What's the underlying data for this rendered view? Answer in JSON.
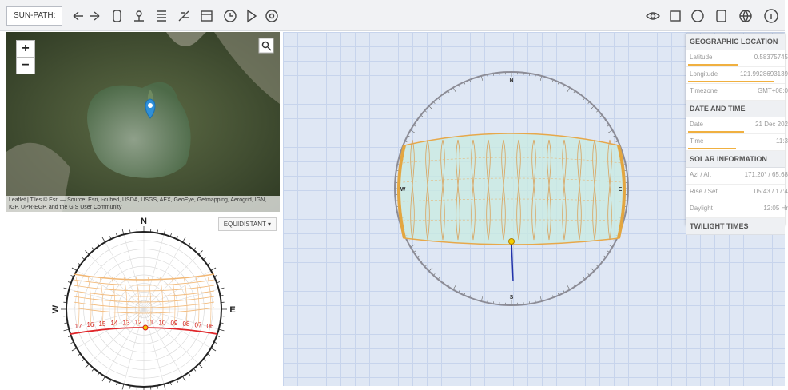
{
  "toolbar": {
    "label": "SUN-PATH:"
  },
  "map": {
    "zoom_in": "+",
    "zoom_out": "−",
    "attribution": "Leaflet | Tiles © Esri — Source: Esri, i-cubed, USDA, USGS, AEX, GeoEye, Getmapping, Aerogrid, IGN, IGP, UPR-EGP, and the GIS User Community"
  },
  "projection_chart": {
    "projection": "EQUIDISTANT ▾",
    "directions": {
      "north": "N",
      "east": "E",
      "west": "W"
    },
    "hour_labels": [
      "17",
      "16",
      "15",
      "14",
      "13",
      "12",
      "11",
      "10",
      "09",
      "08",
      "07",
      "06"
    ]
  },
  "main_diagram": {
    "directions": {
      "north": "N",
      "east": "E",
      "south": "S",
      "west": "W"
    }
  },
  "info_panel": {
    "sections": [
      {
        "title": "GEOGRAPHIC LOCATION",
        "rows": [
          [
            "Latitude",
            "0.58375745"
          ],
          [
            "Longitude",
            "121.9928693139"
          ],
          [
            "Timezone",
            "GMT+08:0"
          ]
        ]
      },
      {
        "title": "DATE AND TIME",
        "rows": [
          [
            "Date",
            "21 Dec 202"
          ],
          [
            "Time",
            "11:3"
          ]
        ]
      },
      {
        "title": "SOLAR INFORMATION",
        "rows": [
          [
            "Azi / Alt",
            "171.20° / 65.68"
          ],
          [
            "Rise / Set",
            "05:43 / 17:4"
          ],
          [
            "Daylight",
            "12:05 Hr"
          ]
        ]
      },
      {
        "title": "TWILIGHT TIMES"
      }
    ]
  }
}
